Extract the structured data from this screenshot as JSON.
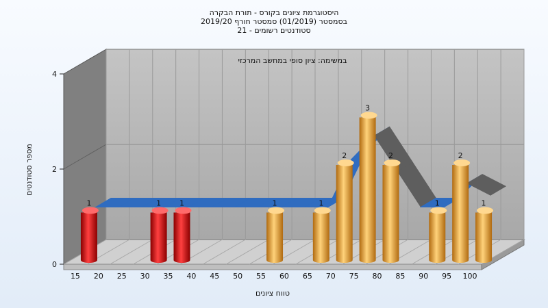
{
  "chart_data": {
    "type": "bar",
    "title_lines": [
      "היסטוגרמת ציונים בקורס - תורת הבקרה",
      "בסמסטר  (01/2019)  סמסטר חורף 2019/20",
      "סטודנטים רשומים - 21"
    ],
    "subtitle": "במשימה: ציון סופי במחשב המרכזי",
    "xlabel": "טווח ציונים",
    "ylabel": "מספר סטודנטים",
    "categories": [
      "15",
      "20",
      "25",
      "30",
      "35",
      "40",
      "45",
      "50",
      "55",
      "60",
      "65",
      "70",
      "75",
      "80",
      "85",
      "90",
      "95",
      "100"
    ],
    "values": [
      1,
      0,
      0,
      1,
      1,
      0,
      0,
      0,
      1,
      0,
      1,
      2,
      3,
      2,
      0,
      1,
      2,
      1
    ],
    "ylim": [
      0,
      4
    ],
    "yticks": [
      0,
      2,
      4
    ],
    "failing_max_category": "35",
    "colors": {
      "fail": "#e01010",
      "pass": "#e8a030",
      "curve_front": "#2f6cc0",
      "curve_back": "#5e5e5e",
      "wall_back": "#b4b4b4",
      "wall_left": "#808080",
      "floor": "#d2d2d2"
    },
    "grid": true,
    "legend": "none"
  }
}
